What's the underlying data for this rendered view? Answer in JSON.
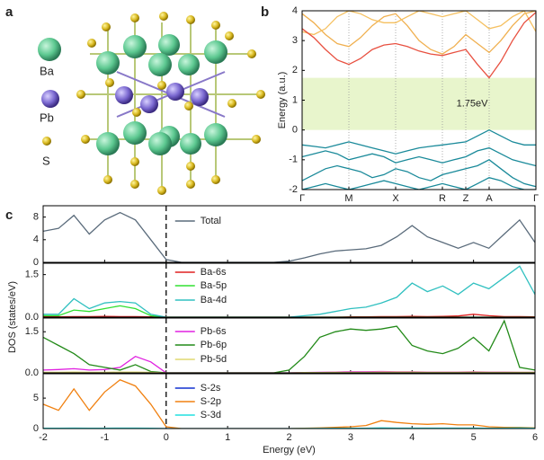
{
  "structure": {
    "panel": "a",
    "legend": [
      "Ba",
      "Pb",
      "S"
    ]
  },
  "chart_data": [
    {
      "type": "line",
      "panel": "b",
      "ylabel": "Energy (a.u.)",
      "x": [
        0,
        0.25,
        0.5,
        0.75,
        1,
        1.25,
        1.5,
        1.75,
        2,
        2.25,
        2.5,
        2.75,
        3,
        3.25,
        3.5,
        3.75,
        4,
        4.25,
        4.5,
        4.75,
        5
      ],
      "xlim": [
        0,
        5
      ],
      "xticks": [
        {
          "value": 0,
          "label": "Γ"
        },
        {
          "value": 1,
          "label": "M"
        },
        {
          "value": 2,
          "label": "X"
        },
        {
          "value": 3,
          "label": "R"
        },
        {
          "value": 3.5,
          "label": "Z"
        },
        {
          "value": 4,
          "label": "A"
        },
        {
          "value": 5,
          "label": "Γ"
        }
      ],
      "ylim": [
        -2,
        4
      ],
      "yticks": [
        -2,
        -1,
        0,
        1,
        2,
        3,
        4
      ],
      "grid": "x",
      "band_gap": {
        "range": [
          0,
          1.75
        ],
        "label": "1.75eV",
        "color": "#e8f5cc"
      },
      "series": [
        {
          "color": "#f0b050",
          "values": [
            3.9,
            3.6,
            3.2,
            2.9,
            2.8,
            3.1,
            3.5,
            3.8,
            3.9,
            3.5,
            3.0,
            2.7,
            2.55,
            2.8,
            3.2,
            2.9,
            2.6,
            3.0,
            3.5,
            3.9,
            4.0
          ]
        },
        {
          "color": "#f5c060",
          "values": [
            3.3,
            3.2,
            3.4,
            3.8,
            4.0,
            3.9,
            3.7,
            3.6,
            3.6,
            3.8,
            4.0,
            3.9,
            3.8,
            3.9,
            4.0,
            3.7,
            3.4,
            3.5,
            3.8,
            4.0,
            3.3
          ]
        },
        {
          "color": "#e85040",
          "values": [
            3.4,
            3.1,
            2.7,
            2.35,
            2.2,
            2.4,
            2.7,
            2.85,
            2.9,
            2.8,
            2.65,
            2.55,
            2.5,
            2.6,
            2.7,
            2.2,
            1.75,
            2.3,
            3.0,
            3.6,
            3.95
          ]
        },
        {
          "color": "#1a8a9a",
          "values": [
            -0.5,
            -0.55,
            -0.6,
            -0.5,
            -0.4,
            -0.5,
            -0.6,
            -0.7,
            -0.8,
            -0.7,
            -0.6,
            -0.55,
            -0.5,
            -0.45,
            -0.4,
            -0.2,
            0.0,
            -0.2,
            -0.4,
            -0.5,
            -0.5
          ]
        },
        {
          "color": "#1a8a9a",
          "values": [
            -0.9,
            -0.8,
            -0.7,
            -0.8,
            -1.0,
            -0.9,
            -0.8,
            -0.9,
            -1.1,
            -1.0,
            -0.9,
            -1.0,
            -1.1,
            -1.0,
            -0.9,
            -0.7,
            -0.6,
            -0.8,
            -1.0,
            -1.1,
            -1.2
          ]
        },
        {
          "color": "#1a8a9a",
          "values": [
            -1.7,
            -1.5,
            -1.3,
            -1.2,
            -1.3,
            -1.4,
            -1.6,
            -1.5,
            -1.3,
            -1.4,
            -1.6,
            -1.7,
            -1.5,
            -1.4,
            -1.3,
            -1.2,
            -1.0,
            -1.3,
            -1.6,
            -1.8,
            -1.9
          ]
        },
        {
          "color": "#1a8a9a",
          "values": [
            -2.0,
            -1.9,
            -1.8,
            -1.9,
            -2.0,
            -1.9,
            -1.8,
            -1.7,
            -1.8,
            -1.9,
            -2.0,
            -1.9,
            -1.8,
            -1.9,
            -2.0,
            -1.8,
            -1.6,
            -1.7,
            -1.9,
            -2.0,
            -2.0
          ]
        }
      ]
    },
    {
      "type": "line",
      "panel": "c",
      "x": [
        -2,
        -1.75,
        -1.5,
        -1.25,
        -1,
        -0.75,
        -0.5,
        -0.25,
        0,
        0.25,
        0.5,
        0.75,
        1,
        1.25,
        1.5,
        1.75,
        2,
        2.25,
        2.5,
        2.75,
        3,
        3.25,
        3.5,
        3.75,
        4,
        4.25,
        4.5,
        4.75,
        5,
        5.25,
        5.5,
        5.75,
        6
      ],
      "xlim": [
        -2,
        6
      ],
      "xticks": [
        -2,
        -1,
        0,
        1,
        2,
        3,
        4,
        5,
        6
      ],
      "ylim": [
        0,
        10
      ],
      "yticks": [
        0,
        4,
        8
      ],
      "vline": 0,
      "legend": "upper left",
      "series": [
        {
          "name": "Total",
          "color": "#5a6b7b",
          "values": [
            5.5,
            6,
            8.3,
            5,
            7.5,
            8.8,
            7.5,
            4,
            0.5,
            0,
            0,
            0,
            0,
            0,
            0,
            0,
            0.2,
            0.8,
            1.5,
            2,
            2.2,
            2.4,
            3,
            4.5,
            6.5,
            4.5,
            3.5,
            2.5,
            3.5,
            2.5,
            5,
            7.5,
            3.5
          ]
        }
      ]
    },
    {
      "type": "line",
      "ylabel": "DOS (states/eV)",
      "x": [
        -2,
        -1.75,
        -1.5,
        -1.25,
        -1,
        -0.75,
        -0.5,
        -0.25,
        0,
        0.25,
        0.5,
        0.75,
        1,
        1.25,
        1.5,
        1.75,
        2,
        2.25,
        2.5,
        2.75,
        3,
        3.25,
        3.5,
        3.75,
        4,
        4.25,
        4.5,
        4.75,
        5,
        5.25,
        5.5,
        5.75,
        6
      ],
      "xlim": [
        -2,
        6
      ],
      "xticks": [
        -2,
        -1,
        0,
        1,
        2,
        3,
        4,
        5,
        6
      ],
      "ylim": [
        0,
        1.9
      ],
      "yticks": [
        {
          "value": 0,
          "label": "0.0"
        },
        1.5
      ],
      "vline": 0,
      "legend": "upper left",
      "series": [
        {
          "name": "Ba-6s",
          "color": "#e02020",
          "values": [
            0.01,
            0.01,
            0.02,
            0.02,
            0.03,
            0.02,
            0.02,
            0.01,
            0,
            0,
            0,
            0,
            0,
            0,
            0,
            0,
            0,
            0,
            0,
            0,
            0.01,
            0.01,
            0.02,
            0.02,
            0.03,
            0.02,
            0.03,
            0.04,
            0.1,
            0.05,
            0.02,
            0.02,
            0.01
          ]
        },
        {
          "name": "Ba-5p",
          "color": "#30e030",
          "values": [
            0.05,
            0.05,
            0.25,
            0.2,
            0.3,
            0.4,
            0.3,
            0.05,
            0,
            0,
            0,
            0,
            0,
            0,
            0,
            0,
            0,
            0,
            0,
            0,
            0,
            0,
            0,
            0,
            0,
            0,
            0,
            0,
            0,
            0,
            0,
            0,
            0
          ]
        },
        {
          "name": "Ba-4d",
          "color": "#30c0c0",
          "values": [
            0.1,
            0.1,
            0.65,
            0.3,
            0.5,
            0.55,
            0.5,
            0.1,
            0,
            0,
            0,
            0,
            0,
            0,
            0,
            0,
            0,
            0.05,
            0.1,
            0.2,
            0.3,
            0.35,
            0.5,
            0.7,
            1.2,
            0.9,
            1.1,
            0.8,
            1.2,
            1,
            1.4,
            1.8,
            0.8
          ]
        }
      ]
    },
    {
      "type": "line",
      "x": [
        -2,
        -1.75,
        -1.5,
        -1.25,
        -1,
        -0.75,
        -0.5,
        -0.25,
        0,
        0.25,
        0.5,
        0.75,
        1,
        1.25,
        1.5,
        1.75,
        2,
        2.25,
        2.5,
        2.75,
        3,
        3.25,
        3.5,
        3.75,
        4,
        4.25,
        4.5,
        4.75,
        5,
        5.25,
        5.5,
        5.75,
        6
      ],
      "xlim": [
        -2,
        6
      ],
      "xticks": [
        -2,
        -1,
        0,
        1,
        2,
        3,
        4,
        5,
        6
      ],
      "ylim": [
        0,
        2
      ],
      "yticks": [
        {
          "value": 0,
          "label": "0.0"
        },
        1.5
      ],
      "vline": 0,
      "legend": "upper left",
      "series": [
        {
          "name": "Pb-6s",
          "color": "#e020e0",
          "values": [
            0.1,
            0.12,
            0.15,
            0.1,
            0.12,
            0.2,
            0.6,
            0.4,
            0,
            0,
            0,
            0,
            0,
            0,
            0,
            0,
            0,
            0.01,
            0.02,
            0.03,
            0.04,
            0.04,
            0.05,
            0.04,
            0.04,
            0.03,
            0.03,
            0.03,
            0.04,
            0.03,
            0.03,
            0.02,
            0.02
          ]
        },
        {
          "name": "Pb-6p",
          "color": "#228a18",
          "values": [
            1.3,
            1,
            0.7,
            0.3,
            0.2,
            0.1,
            0.3,
            0.05,
            0,
            0,
            0,
            0,
            0,
            0,
            0,
            0,
            0.1,
            0.6,
            1.3,
            1.5,
            1.6,
            1.55,
            1.6,
            1.7,
            1,
            0.8,
            0.7,
            0.9,
            1.3,
            0.8,
            1.9,
            0.2,
            0.1
          ]
        },
        {
          "name": "Pb-5d",
          "color": "#e0d870",
          "values": [
            0.02,
            0.02,
            0.03,
            0.02,
            0.02,
            0.03,
            0.03,
            0.02,
            0,
            0,
            0,
            0,
            0,
            0,
            0,
            0,
            0,
            0.01,
            0.01,
            0.02,
            0.02,
            0.02,
            0.03,
            0.03,
            0.03,
            0.02,
            0.02,
            0.02,
            0.03,
            0.02,
            0.02,
            0.02,
            0.02
          ]
        }
      ]
    },
    {
      "type": "line",
      "xlabel": "Energy (eV)",
      "x": [
        -2,
        -1.75,
        -1.5,
        -1.25,
        -1,
        -0.75,
        -0.5,
        -0.25,
        0,
        0.25,
        0.5,
        0.75,
        1,
        1.25,
        1.5,
        1.75,
        2,
        2.25,
        2.5,
        2.75,
        3,
        3.25,
        3.5,
        3.75,
        4,
        4.25,
        4.5,
        4.75,
        5,
        5.25,
        5.5,
        5.75,
        6
      ],
      "xlim": [
        -2,
        6
      ],
      "xticks": [
        -2,
        -1,
        0,
        1,
        2,
        3,
        4,
        5,
        6
      ],
      "ylim": [
        0,
        9
      ],
      "yticks": [
        0,
        5
      ],
      "vline": 0,
      "legend": "upper left",
      "series": [
        {
          "name": "S-2s",
          "color": "#1030d0",
          "values": [
            0,
            0,
            0,
            0,
            0,
            0,
            0,
            0,
            0,
            0,
            0,
            0,
            0,
            0,
            0,
            0,
            0,
            0,
            0,
            0,
            0,
            0,
            0,
            0,
            0,
            0,
            0,
            0,
            0,
            0,
            0,
            0,
            0
          ]
        },
        {
          "name": "S-2p",
          "color": "#f08010",
          "values": [
            4,
            3,
            6.5,
            3,
            6,
            8,
            7,
            4,
            0.3,
            0,
            0,
            0,
            0,
            0,
            0,
            0,
            0,
            0.05,
            0.1,
            0.2,
            0.3,
            0.5,
            1.3,
            1,
            0.8,
            0.7,
            0.8,
            0.6,
            0.6,
            0.3,
            0.2,
            0.2,
            0.1
          ]
        },
        {
          "name": "S-3d",
          "color": "#20e0e0",
          "values": [
            0.05,
            0.05,
            0.08,
            0.05,
            0.06,
            0.08,
            0.07,
            0.05,
            0,
            0,
            0,
            0,
            0,
            0,
            0,
            0,
            0,
            0.02,
            0.03,
            0.04,
            0.05,
            0.06,
            0.1,
            0.08,
            0.08,
            0.07,
            0.08,
            0.07,
            0.08,
            0.06,
            0.08,
            0.1,
            0.06
          ]
        }
      ]
    }
  ]
}
